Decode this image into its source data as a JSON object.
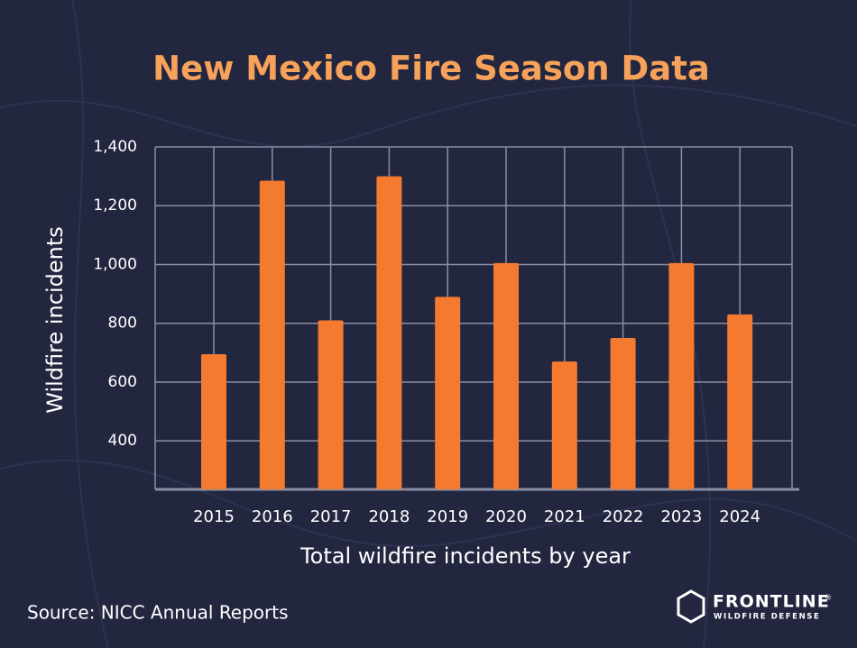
{
  "chart_data": {
    "type": "bar",
    "title": "New Mexico Fire Season Data",
    "y_label": "Wildfire incidents",
    "x_label": "Total wildfire incidents by year",
    "categories": [
      "2015",
      "2016",
      "2017",
      "2018",
      "2019",
      "2020",
      "2021",
      "2022",
      "2023",
      "2024"
    ],
    "values": [
      695,
      1285,
      810,
      1300,
      890,
      1005,
      670,
      750,
      1005,
      830
    ],
    "color": "#f47a30",
    "ylim": [
      235,
      1400
    ],
    "yticks": [
      400,
      600,
      800,
      {
        "value": 1000,
        "label": "1,000"
      },
      {
        "value": 1200,
        "label": "1,200"
      },
      {
        "value": 1400,
        "label": "1,400"
      }
    ],
    "grid": true
  },
  "source": "Source: NICC Annual Reports",
  "logo": {
    "name": "FRONTLINE",
    "mark": "®",
    "tagline": "WILDFIRE DEFENSE"
  }
}
